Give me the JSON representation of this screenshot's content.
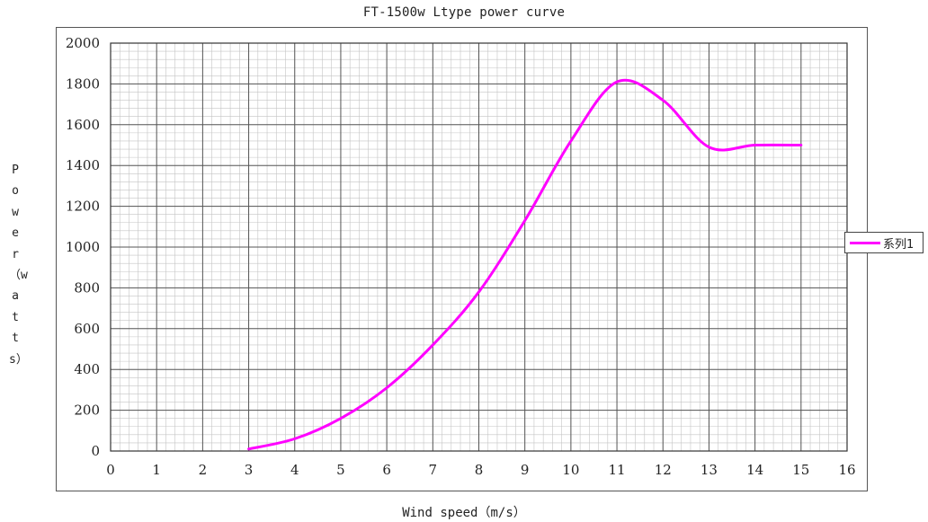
{
  "chart_data": {
    "type": "line",
    "title": "FT-1500w Ltype power curve",
    "xlabel": "Wind speed（m/s）",
    "ylabel": "Power（watts）",
    "xlim": [
      0,
      16
    ],
    "ylim": [
      0,
      2000
    ],
    "x_ticks": [
      0,
      1,
      2,
      3,
      4,
      5,
      6,
      7,
      8,
      9,
      10,
      11,
      12,
      13,
      14,
      15,
      16
    ],
    "y_ticks": [
      0,
      200,
      400,
      600,
      800,
      1000,
      1200,
      1400,
      1600,
      1800,
      2000
    ],
    "grid": true,
    "legend": "right",
    "series": [
      {
        "name": "系列1",
        "color": "#ff00ff",
        "x": [
          3,
          4,
          5,
          6,
          7,
          8,
          9,
          10,
          11,
          12,
          13,
          14,
          15
        ],
        "y": [
          10,
          60,
          160,
          310,
          520,
          780,
          1130,
          1520,
          1810,
          1720,
          1490,
          1500,
          1500
        ]
      }
    ]
  }
}
